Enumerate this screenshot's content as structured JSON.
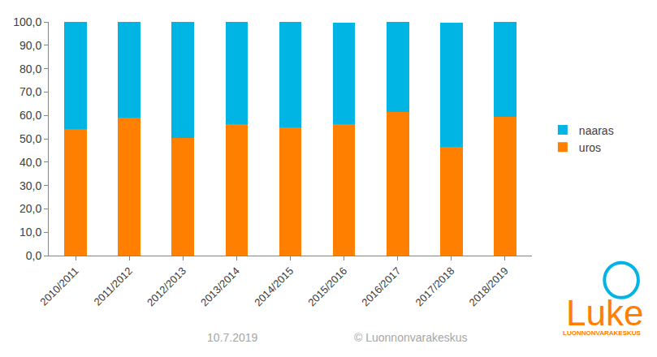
{
  "chart_data": {
    "type": "bar",
    "stacked": true,
    "categories": [
      "2010/2011",
      "2011/2012",
      "2012/2013",
      "2013/2014",
      "2014/2015",
      "2015/2016",
      "2016/2017",
      "2017/2018",
      "2018/2019"
    ],
    "series": [
      {
        "name": "uros",
        "color": "#ff8000",
        "values": [
          54.0,
          59.2,
          50.3,
          56.2,
          55.0,
          56.2,
          61.5,
          46.6,
          59.5
        ]
      },
      {
        "name": "naaras",
        "color": "#00b4e4",
        "values": [
          46.0,
          40.8,
          49.7,
          43.8,
          45.0,
          43.5,
          38.5,
          53.0,
          40.5
        ]
      }
    ],
    "ylim": [
      0,
      100
    ],
    "yticks": [
      {
        "value": 0,
        "label": "0,0"
      },
      {
        "value": 10,
        "label": "10,0"
      },
      {
        "value": 20,
        "label": "20,0"
      },
      {
        "value": 30,
        "label": "30,0"
      },
      {
        "value": 40,
        "label": "40,0"
      },
      {
        "value": 50,
        "label": "50,0"
      },
      {
        "value": 60,
        "label": "60,0"
      },
      {
        "value": 70,
        "label": "70,0"
      },
      {
        "value": 80,
        "label": "80,0"
      },
      {
        "value": 90,
        "label": "90,0"
      },
      {
        "value": 100,
        "label": "100,0"
      }
    ],
    "grid": false,
    "legend": "right",
    "annotations": [
      "10.7.2019",
      "© Luonnonvarakeskus",
      "Luke",
      "LUONNONVARAKESKUS"
    ]
  }
}
